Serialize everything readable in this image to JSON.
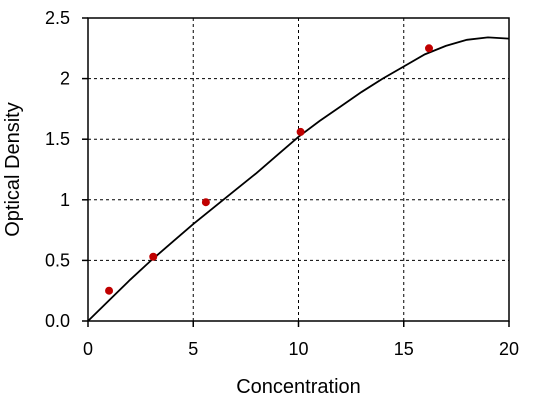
{
  "chart_data": {
    "type": "scatter",
    "title": "",
    "xlabel": "Concentration",
    "ylabel": "Optical Density",
    "xlim": [
      0,
      20
    ],
    "ylim": [
      0,
      2.5
    ],
    "grid": true,
    "x_ticks": [
      0,
      5,
      10,
      15,
      20
    ],
    "y_ticks": [
      0.0,
      0.5,
      1.0,
      1.5,
      2.0,
      2.5
    ],
    "x_tick_labels": [
      "0",
      "5",
      "10",
      "15",
      "20"
    ],
    "y_tick_labels": [
      "0.0",
      "0.5",
      "1",
      "1.5",
      "2",
      "2.5"
    ],
    "points": {
      "x": [
        1.0,
        3.1,
        5.6,
        10.1,
        16.2
      ],
      "y": [
        0.25,
        0.53,
        0.98,
        1.56,
        2.25
      ],
      "color": "#c00000"
    },
    "fit_curve": {
      "x": [
        0.0,
        1.0,
        2.0,
        3.0,
        4.0,
        5.0,
        6.0,
        7.0,
        8.0,
        9.0,
        10.0,
        11.0,
        12.0,
        13.0,
        14.0,
        15.0,
        16.0,
        17.0,
        18.0,
        19.0,
        20.0
      ],
      "y": [
        0.0,
        0.17,
        0.34,
        0.5,
        0.65,
        0.8,
        0.94,
        1.08,
        1.22,
        1.37,
        1.52,
        1.65,
        1.77,
        1.89,
        2.0,
        2.1,
        2.2,
        2.27,
        2.32,
        2.34,
        2.33
      ],
      "color": "#000000"
    }
  }
}
